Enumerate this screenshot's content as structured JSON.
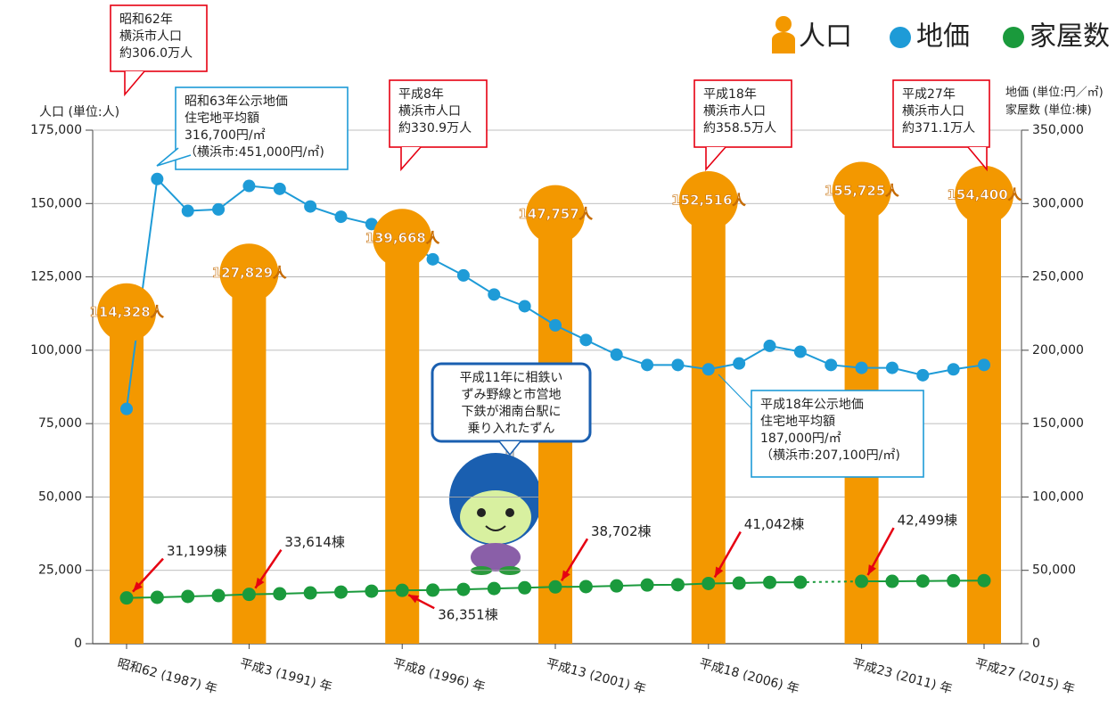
{
  "chart_data": {
    "type": "bar",
    "x": [
      1987,
      1988,
      1989,
      1990,
      1991,
      1992,
      1993,
      1994,
      1995,
      1996,
      1997,
      1998,
      1999,
      2000,
      2001,
      2002,
      2003,
      2004,
      2005,
      2006,
      2007,
      2008,
      2009,
      2010,
      2011,
      2012,
      2013,
      2014,
      2015
    ],
    "xlim": [
      1987,
      2015
    ],
    "xticks": [
      {
        "value": 1987,
        "label": "昭和62 (1987) 年"
      },
      {
        "value": 1991,
        "label": "平成3 (1991) 年"
      },
      {
        "value": 1996,
        "label": "平成8 (1996) 年"
      },
      {
        "value": 2001,
        "label": "平成13 (2001) 年"
      },
      {
        "value": 2006,
        "label": "平成18 (2006) 年"
      },
      {
        "value": 2011,
        "label": "平成23 (2011) 年"
      },
      {
        "value": 2015,
        "label": "平成27 (2015) 年"
      }
    ],
    "ylabel": "人口 (単位:人)",
    "ylim": [
      0,
      175000
    ],
    "yticks": [
      0,
      {
        "value": 25000,
        "label": "25,000"
      },
      {
        "value": 50000,
        "label": "50,000"
      },
      {
        "value": 75000,
        "label": "75,000"
      },
      {
        "value": 100000,
        "label": "100,000"
      },
      {
        "value": 125000,
        "label": "125,000"
      },
      {
        "value": 150000,
        "label": "150,000"
      },
      {
        "value": 175000,
        "label": "175,000"
      }
    ],
    "y2labels": [
      "地価 (単位:円／㎡)",
      "家屋数 (単位:棟)"
    ],
    "y2lim": [
      0,
      350000
    ],
    "y2ticks": [
      0,
      {
        "value": 50000,
        "label": "50,000"
      },
      {
        "value": 100000,
        "label": "100,000"
      },
      {
        "value": 150000,
        "label": "150,000"
      },
      {
        "value": 200000,
        "label": "200,000"
      },
      {
        "value": 250000,
        "label": "250,000"
      },
      {
        "value": 300000,
        "label": "300,000"
      },
      {
        "value": 350000,
        "label": "350,000"
      }
    ],
    "series": [
      {
        "name": "人口",
        "color": "#f39800",
        "type": "bar",
        "values": [
          114328,
          null,
          null,
          null,
          127829,
          null,
          null,
          null,
          null,
          139668,
          null,
          null,
          null,
          null,
          147757,
          null,
          null,
          null,
          null,
          152516,
          null,
          null,
          null,
          null,
          155725,
          null,
          null,
          null,
          154400
        ],
        "value_labels": [
          "114,328人",
          null,
          null,
          null,
          "127,829人",
          null,
          null,
          null,
          null,
          "139,668人",
          null,
          null,
          null,
          null,
          "147,757人",
          null,
          null,
          null,
          null,
          "152,516人",
          null,
          null,
          null,
          null,
          "155,725人",
          null,
          null,
          null,
          "154,400人"
        ]
      },
      {
        "name": "地価",
        "color": "#1e9bd7",
        "type": "line",
        "axis": "y2",
        "values": [
          160000,
          316700,
          295000,
          296000,
          312000,
          310000,
          298000,
          291000,
          286000,
          278000,
          262000,
          251000,
          238000,
          230000,
          217000,
          207000,
          197000,
          190000,
          190000,
          187000,
          191000,
          203000,
          199000,
          190000,
          188000,
          188000,
          183000,
          187000,
          190000
        ]
      },
      {
        "name": "家屋数",
        "color": "#1a9a3c",
        "type": "line",
        "axis": "y2",
        "values": [
          31199,
          31600,
          32200,
          32800,
          33614,
          34000,
          34600,
          35200,
          35800,
          36351,
          36500,
          37000,
          37600,
          38100,
          38702,
          38900,
          39400,
          40000,
          40200,
          41042,
          41300,
          41800,
          41900,
          null,
          42499,
          42500,
          42700,
          42900,
          43000
        ],
        "value_labels": [
          "31,199棟",
          null,
          null,
          null,
          "33,614棟",
          null,
          null,
          null,
          null,
          "36,351棟",
          null,
          null,
          null,
          null,
          "38,702棟",
          null,
          null,
          null,
          null,
          "41,042棟",
          null,
          null,
          null,
          null,
          "42,499棟",
          null,
          null,
          null,
          null
        ]
      }
    ],
    "annotations": [
      {
        "lines": [
          "昭和62年",
          "横浜市人口",
          "約306.0万人"
        ]
      },
      {
        "lines": [
          "昭和63年公示地価",
          "住宅地平均額",
          "316,700円/㎡",
          "（横浜市:451,000円/㎡)"
        ]
      },
      {
        "lines": [
          "平成8年",
          "横浜市人口",
          "約330.9万人"
        ]
      },
      {
        "lines": [
          "平成18年",
          "横浜市人口",
          "約358.5万人"
        ]
      },
      {
        "lines": [
          "平成27年",
          "横浜市人口",
          "約371.1万人"
        ]
      },
      {
        "lines": [
          "平成18年公示地価",
          "住宅地平均額",
          "187,000円/㎡",
          "（横浜市:207,100円/㎡)"
        ]
      },
      {
        "lines": [
          "平成11年に相鉄い",
          "ずみ野線と市営地",
          "下鉄が湘南台駅に",
          "乗り入れたずん"
        ]
      }
    ]
  }
}
